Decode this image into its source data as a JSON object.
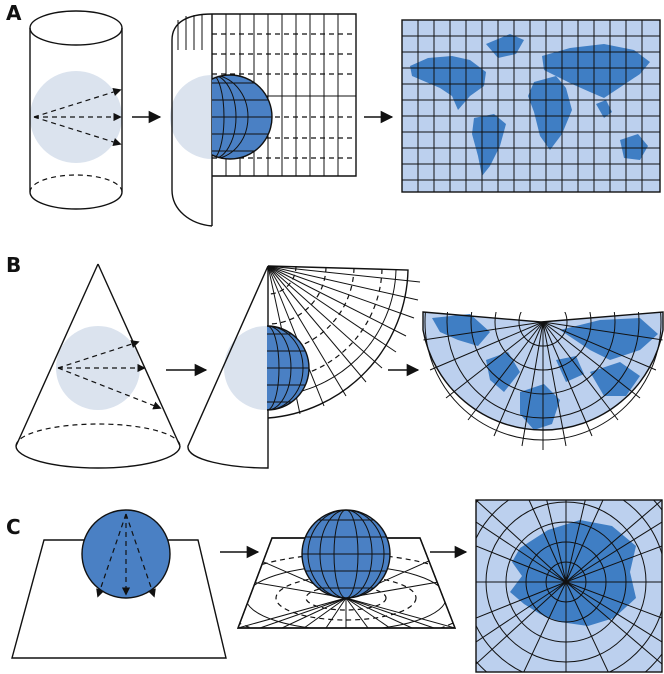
{
  "panels": [
    {
      "id": "A",
      "label": "A",
      "projection": "cylindrical"
    },
    {
      "id": "B",
      "label": "B",
      "projection": "conic"
    },
    {
      "id": "C",
      "label": "C",
      "projection": "azimuthal"
    }
  ],
  "colors": {
    "globe": "#4a80c4",
    "globe_ghost": "#dbe3ee",
    "map_background": "#bcd0ee",
    "land": "#3f7ec4",
    "outline": "#111111"
  }
}
